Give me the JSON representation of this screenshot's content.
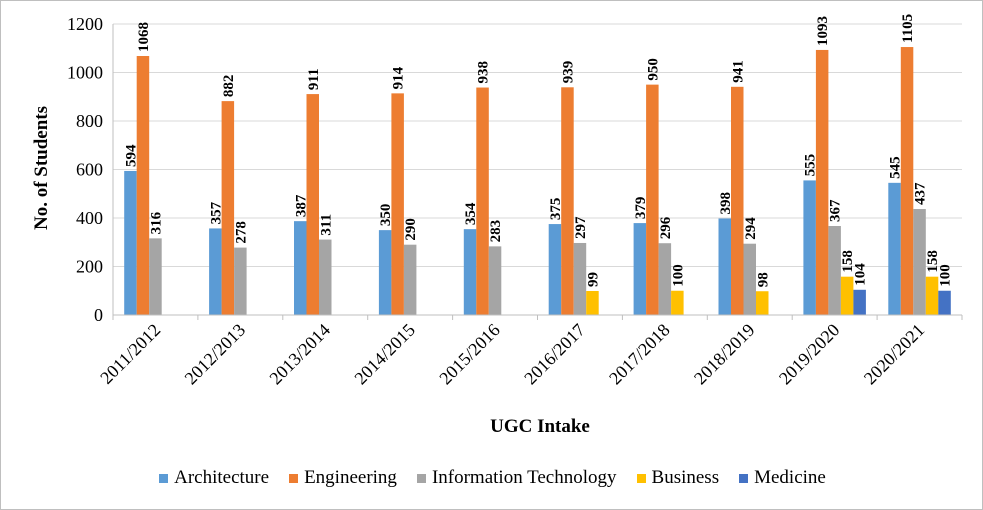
{
  "chart_data": {
    "type": "bar",
    "title": "",
    "xlabel": "UGC Intake",
    "ylabel": "No. of Students",
    "ylim": [
      0,
      1200
    ],
    "yticks": [
      0,
      200,
      400,
      600,
      800,
      1000,
      1200
    ],
    "grid": true,
    "legend_position": "bottom",
    "categories": [
      "2011/2012",
      "2012/2013",
      "2013/2014",
      "2014/2015",
      "2015/2016",
      "2016/2017",
      "2017/2018",
      "2018/2019",
      "2019/2020",
      "2020/2021"
    ],
    "series": [
      {
        "name": "Architecture",
        "color": "#5b9bd5",
        "values": [
          594,
          357,
          387,
          350,
          354,
          375,
          379,
          398,
          555,
          545
        ]
      },
      {
        "name": "Engineering",
        "color": "#ed7d31",
        "values": [
          1068,
          882,
          911,
          914,
          938,
          939,
          950,
          941,
          1093,
          1105
        ]
      },
      {
        "name": "Information Technology",
        "color": "#a5a5a5",
        "values": [
          316,
          278,
          311,
          290,
          283,
          297,
          296,
          294,
          367,
          437
        ]
      },
      {
        "name": "Business",
        "color": "#ffc000",
        "values": [
          null,
          null,
          null,
          null,
          null,
          99,
          100,
          98,
          158,
          158
        ]
      },
      {
        "name": "Medicine",
        "color": "#4472c4",
        "values": [
          null,
          null,
          null,
          null,
          null,
          null,
          null,
          null,
          104,
          100
        ]
      }
    ]
  }
}
